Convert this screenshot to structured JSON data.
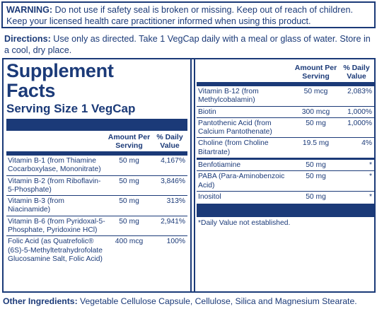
{
  "warning": {
    "label": "WARNING:",
    "text": " Do not use if safety seal is broken or missing. Keep out of reach of children. Keep your licensed health care practitioner informed when using this product."
  },
  "directions": {
    "label": "Directions:",
    "text": " Use only as directed. Take 1 VegCap daily with a meal or glass of water. Store in a cool, dry place."
  },
  "facts": {
    "title": "Supplement Facts",
    "serving_size": "Serving Size 1 VegCap",
    "header_amount": "Amount Per Serving",
    "header_dv": "% Daily Value",
    "left_rows": [
      {
        "name": "Vitamin B-1 (from Thiamine Cocarboxylase, Mononitrate)",
        "amount": "50 mg",
        "dv": "4,167%"
      },
      {
        "name": "Vitamin B-2 (from Riboflavin-5-Phosphate)",
        "amount": "50 mg",
        "dv": "3,846%"
      },
      {
        "name": "Vitamin B-3 (from Niacinamide)",
        "amount": "50 mg",
        "dv": "313%"
      },
      {
        "name": "Vitamin B-6 (from Pyridoxal-5-Phosphate, Pyridoxine HCl)",
        "amount": "50 mg",
        "dv": "2,941%"
      },
      {
        "name": "Folic Acid (as Quatrefolic® (6S)-5-Methyltetrahydrofolate Glucosamine Salt, Folic Acid)",
        "amount": "400 mcg",
        "dv": "100%"
      }
    ],
    "right_rows_top": [
      {
        "name": "Vitamin B-12 (from Methylcobalamin)",
        "amount": "50 mcg",
        "dv": "2,083%"
      },
      {
        "name": "Biotin",
        "amount": "300 mcg",
        "dv": "1,000%"
      },
      {
        "name": "Pantothenic Acid (from Calcium Pantothenate)",
        "amount": "50 mg",
        "dv": "1,000%"
      },
      {
        "name": "Choline (from Choline Bitartrate)",
        "amount": "19.5 mg",
        "dv": "4%"
      }
    ],
    "right_rows_bottom": [
      {
        "name": "Benfotiamine",
        "amount": "50 mg",
        "dv": "*"
      },
      {
        "name": "PABA (Para-Aminobenzoic Acid)",
        "amount": "50 mg",
        "dv": "*"
      },
      {
        "name": "Inositol",
        "amount": "50 mg",
        "dv": "*"
      }
    ],
    "footnote": "*Daily Value not established."
  },
  "other_ingredients": {
    "label": "Other Ingredients:",
    "text": " Vegetable Cellulose Capsule, Cellulose, Silica and Magnesium Stearate."
  },
  "colors": {
    "navy": "#1b3a78",
    "background": "#ffffff"
  }
}
